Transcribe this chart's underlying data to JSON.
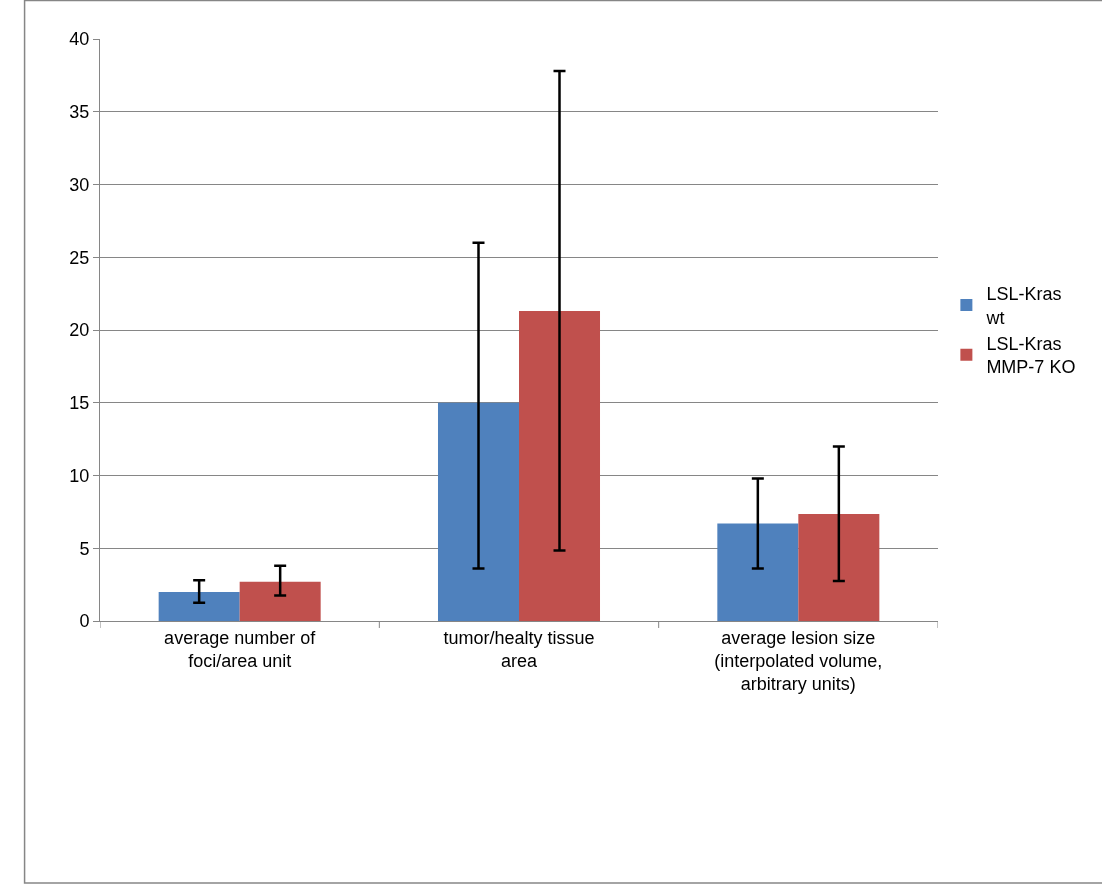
{
  "chart_data": {
    "type": "bar",
    "categories": [
      "average number of foci/area unit",
      "tumor/healty tissue area",
      "average lesion size (interpolated volume, arbitrary units)"
    ],
    "series": [
      {
        "name": "LSL-Kras wt",
        "color": "#4f81bd",
        "values": [
          2.0,
          15.0,
          6.7
        ],
        "errors": [
          [
            1.25,
            2.8
          ],
          [
            3.6,
            26.0
          ],
          [
            3.6,
            9.8
          ]
        ]
      },
      {
        "name": "LSL-Kras MMP-7 KO",
        "color": "#c0504d",
        "values": [
          2.7,
          21.3,
          7.35
        ],
        "errors": [
          [
            1.75,
            3.8
          ],
          [
            4.85,
            37.8
          ],
          [
            2.75,
            12.0
          ]
        ]
      }
    ],
    "ylim": [
      0,
      40
    ],
    "yticks": [
      0,
      5,
      10,
      15,
      20,
      25,
      30,
      35,
      40
    ],
    "grid": "y",
    "legend": "right"
  }
}
